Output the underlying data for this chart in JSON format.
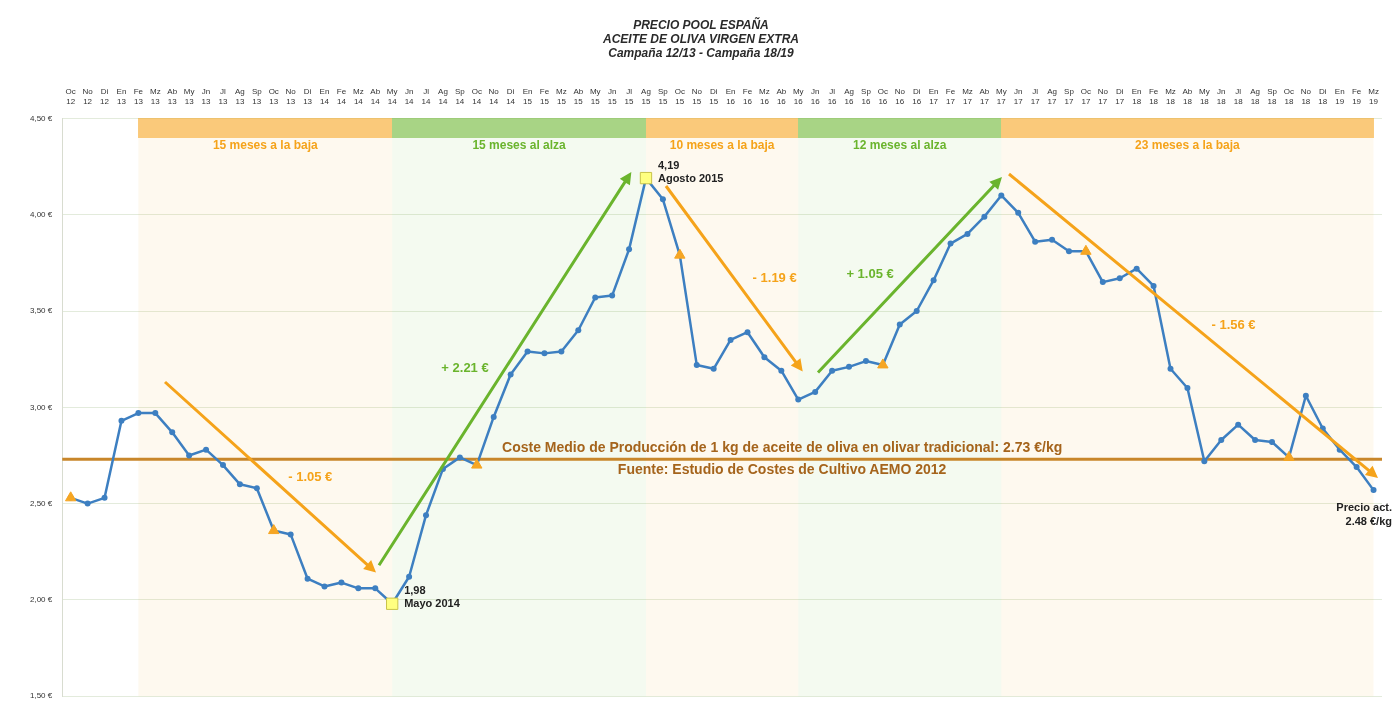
{
  "chart_data": {
    "type": "line",
    "title": "PRECIO POOL ESPAÑA",
    "subtitle": "ACEITE DE OLIVA VIRGEN EXTRA\nCampaña 12/13 - Campaña 18/19",
    "categories": [
      "Oc 12",
      "No 12",
      "Di 12",
      "En 13",
      "Fe 13",
      "Mz 13",
      "Ab 13",
      "My 13",
      "Jn 13",
      "Jl 13",
      "Ag 13",
      "Sp 13",
      "Oc 13",
      "No 13",
      "Di 13",
      "En 14",
      "Fe 14",
      "Mz 14",
      "Ab 14",
      "My 14",
      "Jn 14",
      "Jl 14",
      "Ag 14",
      "Sp 14",
      "Oc 14",
      "No 14",
      "Di 14",
      "En 15",
      "Fe 15",
      "Mz 15",
      "Ab 15",
      "My 15",
      "Jn 15",
      "Jl 15",
      "Ag 15",
      "Sp 15",
      "Oc 15",
      "No 15",
      "Di 15",
      "En 16",
      "Fe 16",
      "Mz 16",
      "Ab 16",
      "My 16",
      "Jn 16",
      "Jl 16",
      "Ag 16",
      "Sp 16",
      "Oc 16",
      "No 16",
      "Di 16",
      "En 17",
      "Fe 17",
      "Mz 17",
      "Ab 17",
      "My 17",
      "Jn 17",
      "Jl 17",
      "Ag 17",
      "Sp 17",
      "Oc 17",
      "No 17",
      "Di 17",
      "En 18",
      "Fe 18",
      "Mz 18",
      "Ab 18",
      "My 18",
      "Jn 18",
      "Jl 18",
      "Ag 18",
      "Sp 18",
      "Oc 18",
      "No 18",
      "Di 18",
      "En 19",
      "Fe 19",
      "Mz 19"
    ],
    "series": [
      {
        "color": "#3d7fc1",
        "values": [
          2.53,
          2.5,
          2.53,
          2.93,
          2.97,
          2.97,
          2.87,
          2.75,
          2.78,
          2.7,
          2.6,
          2.58,
          2.36,
          2.34,
          2.11,
          2.07,
          2.09,
          2.06,
          2.06,
          1.98,
          2.12,
          2.44,
          2.68,
          2.74,
          2.7,
          2.95,
          3.17,
          3.29,
          3.28,
          3.29,
          3.4,
          3.57,
          3.58,
          3.82,
          4.19,
          4.08,
          3.79,
          3.22,
          3.2,
          3.35,
          3.39,
          3.26,
          3.19,
          3.04,
          3.08,
          3.19,
          3.21,
          3.24,
          3.22,
          3.43,
          3.5,
          3.66,
          3.85,
          3.9,
          3.99,
          4.1,
          4.01,
          3.86,
          3.87,
          3.81,
          3.81,
          3.65,
          3.67,
          3.72,
          3.63,
          3.2,
          3.1,
          2.72,
          2.83,
          2.91,
          2.83,
          2.82,
          2.74,
          3.06,
          2.89,
          2.78,
          2.69,
          2.57
        ]
      },
      {
        "type": "scatter",
        "color": "#f6a623",
        "marker": "triangle",
        "x": [
          "Oc 12",
          "Oc 13",
          "Oc 14",
          "Oc 15",
          "Oc 16",
          "Oc 17",
          "Oc 18"
        ],
        "values": [
          2.53,
          2.36,
          2.7,
          3.79,
          3.22,
          3.81,
          2.74
        ]
      },
      {
        "type": "scatter",
        "color": "#ffff80",
        "marker": "square",
        "x": [
          "My 14",
          "Ag 15"
        ],
        "values": [
          1.98,
          4.19
        ]
      }
    ],
    "ylim": [
      1.5,
      4.5
    ],
    "yticks": [
      {
        "value": 1.5,
        "label": "1,50 €"
      },
      {
        "value": 2,
        "label": "2,00 €"
      },
      {
        "value": 2.5,
        "label": "2,50 €"
      },
      {
        "value": 3,
        "label": "3,00 €"
      },
      {
        "value": 3.5,
        "label": "3,50 €"
      },
      {
        "value": 4,
        "label": "4,00 €"
      },
      {
        "value": 4.5,
        "label": "4,50 €"
      }
    ],
    "grid": "y",
    "marker": "circle",
    "line_style": "solid",
    "bands": [
      {
        "axis": "x",
        "from": "Fe 13",
        "to": "My 14",
        "label": "15 meses a la baja",
        "color": "#f5a31a"
      },
      {
        "axis": "x",
        "from": "My 14",
        "to": "Ag 15",
        "label": "15 meses al alza",
        "color": "#6ab42d"
      },
      {
        "axis": "x",
        "from": "Ag 15",
        "to": "My 16",
        "label": "10 meses a la baja",
        "color": "#f5a31a"
      },
      {
        "axis": "x",
        "from": "My 16",
        "to": "My 17",
        "label": "12 meses al alza",
        "color": "#6ab42d"
      },
      {
        "axis": "x",
        "from": "My 17",
        "to": "Mz 19",
        "label": "23 meses a la baja",
        "color": "#f5a31a"
      }
    ],
    "ref_lines": [
      {
        "axis": "y",
        "value": 2.73,
        "label": "Coste Medio de Producción de 1 kg de aceite de oliva en olivar tradicional: 2.73 €/kg",
        "color": "#c8862a"
      }
    ],
    "annotations": [
      "Fuente: Estudio de Costes de Cultivo AEMO 2012",
      "- 1.05 €",
      "+ 2.21 €",
      "- 1.19 €",
      "+ 1.05 €",
      "- 1.56 €",
      {
        "text": "4,19\nAgosto 2015",
        "x": "Ag 15",
        "y": 4.19
      },
      {
        "text": "1,98\nMayo 2014",
        "x": "My 14",
        "y": 1.98
      },
      "Precio act.\n2.48 €/kg"
    ]
  }
}
